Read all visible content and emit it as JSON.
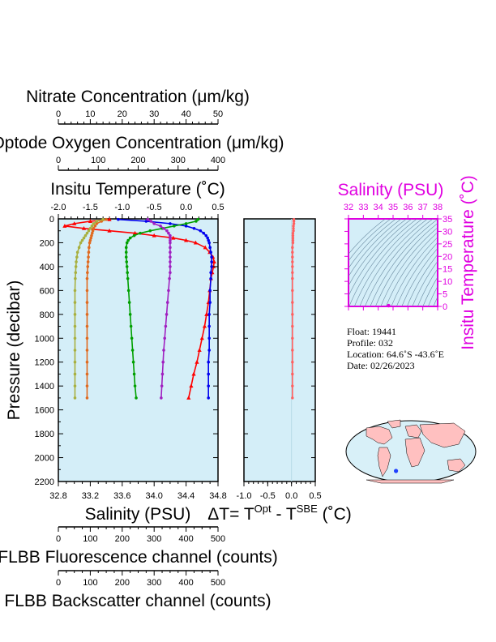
{
  "chart_data": {
    "type": "line",
    "top_axes": [
      {
        "id": "nitrate",
        "title": "Nitrate Concentration (μm/kg)",
        "ticks": [
          "0",
          "10",
          "20",
          "30",
          "40",
          "50"
        ]
      },
      {
        "id": "oxygen",
        "title": "Optode Oxygen Concentration (μm/kg)",
        "ticks": [
          "0",
          "100",
          "200",
          "300",
          "400"
        ]
      },
      {
        "id": "temperature",
        "title": "Insitu Temperature (˚C)",
        "ticks": [
          "-2.0",
          "-1.5",
          "-1.0",
          "-0.5",
          "0.0",
          "0.5"
        ]
      }
    ],
    "bottom_axes": [
      {
        "id": "salinity",
        "title": "Salinity (PSU)",
        "ticks": [
          "32.8",
          "33.2",
          "33.6",
          "34.0",
          "34.4",
          "34.8"
        ]
      },
      {
        "id": "fluorescence",
        "title": "FLBB Fluorescence channel (counts)",
        "ticks": [
          "0",
          "100",
          "200",
          "300",
          "400",
          "500"
        ]
      },
      {
        "id": "backscatter",
        "title": "FLBB Backscatter channel (counts)",
        "ticks": [
          "0",
          "100",
          "200",
          "300",
          "400",
          "500"
        ]
      }
    ],
    "ylabel": "Pressure (decibar)",
    "yticks": [
      "0",
      "200",
      "400",
      "600",
      "800",
      "1000",
      "1200",
      "1400",
      "1600",
      "1800",
      "2000",
      "2200"
    ],
    "ylim": [
      0,
      2200
    ],
    "depth": [
      5,
      20,
      40,
      60,
      80,
      100,
      120,
      140,
      160,
      180,
      200,
      240,
      280,
      320,
      360,
      400,
      450,
      500,
      600,
      700,
      800,
      900,
      1000,
      1100,
      1200,
      1300,
      1400,
      1500
    ],
    "main_series": [
      {
        "id": "temperature_red",
        "axis": "temperature",
        "color": "#ff0000",
        "x": [
          -1.2,
          -1.5,
          -1.75,
          -1.9,
          -1.6,
          -1.2,
          -0.8,
          -0.5,
          -0.2,
          0.0,
          0.15,
          0.3,
          0.37,
          0.42,
          0.44,
          0.43,
          0.41,
          0.39,
          0.37,
          0.35,
          0.32,
          0.29,
          0.25,
          0.21,
          0.17,
          0.12,
          0.08,
          0.04
        ]
      },
      {
        "id": "salinity_blue",
        "axis": "salinity",
        "color": "#0000ee",
        "x": [
          33.55,
          33.9,
          34.2,
          34.4,
          34.5,
          34.58,
          34.62,
          34.65,
          34.67,
          34.68,
          34.69,
          34.7,
          34.71,
          34.72,
          34.72,
          34.72,
          34.71,
          34.71,
          34.7,
          34.7,
          34.69,
          34.69,
          34.69,
          34.69,
          34.68,
          34.68,
          34.68,
          34.68
        ]
      },
      {
        "id": "oxygen_green",
        "axis": "oxygen",
        "color": "#00a000",
        "x": [
          350,
          345,
          320,
          290,
          260,
          230,
          205,
          190,
          180,
          175,
          172,
          170,
          170,
          170,
          171,
          172,
          173,
          174,
          176,
          178,
          180,
          182,
          184,
          186,
          188,
          190,
          192,
          195
        ]
      },
      {
        "id": "nitrate_purple",
        "axis": "nitrate",
        "color": "#a020c0",
        "x": [
          28,
          29,
          30,
          32,
          33,
          34,
          34.5,
          35,
          35,
          35,
          35,
          35,
          35,
          35,
          35,
          35,
          35,
          34.8,
          34.5,
          34.2,
          33.9,
          33.6,
          33.3,
          33.0,
          32.8,
          32.6,
          32.4,
          32.2
        ]
      },
      {
        "id": "fluorescence_orange",
        "axis": "fluorescence",
        "color": "#e06a20",
        "x": [
          150,
          135,
          120,
          115,
          110,
          108,
          106,
          104,
          102,
          100,
          98,
          96,
          95,
          94,
          93,
          92,
          91,
          90,
          90,
          90,
          90,
          90,
          90,
          90,
          90,
          90,
          90,
          90
        ]
      },
      {
        "id": "backscatter_olive",
        "axis": "backscatter",
        "color": "#a8b040",
        "x": [
          140,
          120,
          110,
          105,
          100,
          95,
          90,
          85,
          80,
          75,
          70,
          65,
          60,
          58,
          56,
          55,
          54,
          53,
          52,
          52,
          52,
          52,
          52,
          52,
          52,
          52,
          52,
          52
        ]
      }
    ],
    "delta_panel": {
      "title": "ΔT= T",
      "title_sup1": "Opt",
      "title_mid": " - T",
      "title_sup2": "SBE",
      "title_end": " (˚C)",
      "ticks": [
        "-1.0",
        "-0.5",
        "0.0",
        "0.5"
      ],
      "xlim": [
        -1.0,
        0.5
      ],
      "color": "#ff6060",
      "x": [
        0.05,
        0.05,
        0.05,
        0.04,
        0.04,
        0.04,
        0.03,
        0.03,
        0.03,
        0.03,
        0.03,
        0.02,
        0.02,
        0.02,
        0.02,
        0.02,
        0.02,
        0.02,
        0.02,
        0.02,
        0.02,
        0.02,
        0.02,
        0.02,
        0.02,
        0.02,
        0.02,
        0.02
      ]
    },
    "ts_panel": {
      "title": "Salinity (PSU)",
      "xticks": [
        "32",
        "33",
        "34",
        "35",
        "36",
        "37",
        "38"
      ],
      "yticks": [
        "0",
        "5",
        "10",
        "15",
        "20",
        "25",
        "30",
        "35"
      ],
      "ylabel": "Insitu Temperature (˚C)",
      "accent": "#e000e0",
      "xlim": [
        32,
        38
      ],
      "ylim": [
        0,
        35
      ],
      "marker": {
        "x": 34.7,
        "y": 0.3
      }
    }
  },
  "float_info": {
    "float": "Float:  19441",
    "profile": "Profile:  032",
    "location": "Location:  64.6˚S  -43.6˚E",
    "date": "Date:  02/26/2023"
  },
  "map": {
    "marker_lon": -43.6,
    "marker_lat": -64.6,
    "colors": {
      "ocean": "#d8f0f8",
      "land": "#ffc0c0",
      "marker": "#2040ff"
    }
  }
}
